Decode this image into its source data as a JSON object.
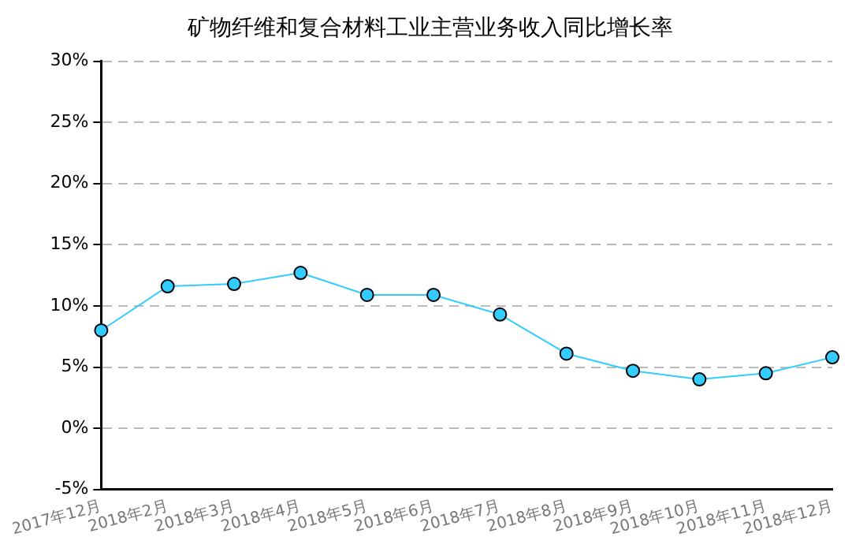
{
  "chart_data": {
    "type": "line",
    "title": "矿物纤维和复合材料工业主营业务收入同比增长率",
    "categories": [
      "2017年12月",
      "2018年2月",
      "2018年3月",
      "2018年4月",
      "2018年5月",
      "2018年6月",
      "2018年7月",
      "2018年8月",
      "2018年9月",
      "2018年10月",
      "2018年11月",
      "2018年12月"
    ],
    "series": [
      {
        "color": "#33ccff",
        "values": [
          8.0,
          11.6,
          11.8,
          12.7,
          10.9,
          10.9,
          9.3,
          6.1,
          4.7,
          4.0,
          4.5,
          5.8
        ]
      }
    ],
    "ylim": [
      -5,
      30
    ],
    "yticks": [
      {
        "value": -5,
        "label": "-5%"
      },
      {
        "value": 0,
        "label": "0%"
      },
      {
        "value": 5,
        "label": "5%"
      },
      {
        "value": 10,
        "label": "10%"
      },
      {
        "value": 15,
        "label": "15%"
      },
      {
        "value": 20,
        "label": "20%"
      },
      {
        "value": 25,
        "label": "25%"
      },
      {
        "value": 30,
        "label": "30%"
      }
    ],
    "grid": "y",
    "legend": false,
    "marker": "circle",
    "line_style": "solid"
  }
}
